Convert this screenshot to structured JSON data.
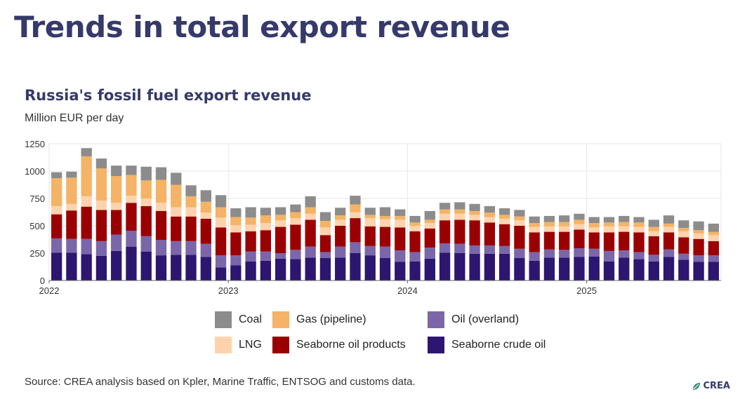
{
  "header": {
    "title": "Trends in total export revenue"
  },
  "chart_data": {
    "type": "bar",
    "stacked": true,
    "title": "Russia's fossil fuel export revenue",
    "subtitle": "Million EUR per day",
    "xlabel": "",
    "ylabel": "Million EUR per day",
    "ylim": [
      0,
      1250
    ],
    "yticks": [
      0,
      250,
      500,
      750,
      1000,
      1250
    ],
    "year_ticks": [
      {
        "label": "2022",
        "month_index": 0
      },
      {
        "label": "2023",
        "month_index": 12
      },
      {
        "label": "2024",
        "month_index": 24
      },
      {
        "label": "2025",
        "month_index": 36
      }
    ],
    "grid": true,
    "categories": [
      "2022-01",
      "2022-02",
      "2022-03",
      "2022-04",
      "2022-05",
      "2022-06",
      "2022-07",
      "2022-08",
      "2022-09",
      "2022-10",
      "2022-11",
      "2022-12",
      "2023-01",
      "2023-02",
      "2023-03",
      "2023-04",
      "2023-05",
      "2023-06",
      "2023-07",
      "2023-08",
      "2023-09",
      "2023-10",
      "2023-11",
      "2023-12",
      "2024-01",
      "2024-02",
      "2024-03",
      "2024-04",
      "2024-05",
      "2024-06",
      "2024-07",
      "2024-08",
      "2024-09",
      "2024-10",
      "2024-11",
      "2024-12",
      "2025-01",
      "2025-02",
      "2025-03",
      "2025-04",
      "2025-05",
      "2025-06",
      "2025-07",
      "2025-08",
      "2025-09"
    ],
    "series": [
      {
        "name": "Seaborne crude oil",
        "color": "#2c1670",
        "values": [
          255,
          255,
          240,
          225,
          270,
          310,
          265,
          230,
          235,
          235,
          215,
          120,
          140,
          175,
          180,
          200,
          195,
          210,
          205,
          210,
          250,
          230,
          205,
          170,
          175,
          200,
          255,
          250,
          245,
          245,
          245,
          205,
          180,
          210,
          210,
          215,
          220,
          175,
          210,
          195,
          175,
          215,
          190,
          170,
          170
        ]
      },
      {
        "name": "Oil (overland)",
        "color": "#7b66a9",
        "values": [
          130,
          125,
          140,
          135,
          150,
          145,
          140,
          140,
          125,
          125,
          120,
          110,
          90,
          90,
          85,
          50,
          85,
          100,
          55,
          100,
          100,
          85,
          105,
          105,
          85,
          100,
          85,
          85,
          75,
          75,
          70,
          85,
          80,
          75,
          70,
          80,
          70,
          95,
          65,
          65,
          60,
          70,
          55,
          60,
          60
        ]
      },
      {
        "name": "Seaborne oil products",
        "color": "#9b0000",
        "values": [
          220,
          260,
          295,
          285,
          225,
          255,
          275,
          265,
          225,
          225,
          230,
          255,
          210,
          185,
          195,
          240,
          230,
          245,
          155,
          190,
          220,
          180,
          180,
          210,
          190,
          175,
          210,
          220,
          230,
          210,
          200,
          210,
          180,
          160,
          165,
          170,
          150,
          170,
          170,
          180,
          170,
          155,
          150,
          150,
          130
        ]
      },
      {
        "name": "LNG",
        "color": "#fdd3ae",
        "values": [
          75,
          60,
          95,
          85,
          65,
          65,
          70,
          75,
          85,
          85,
          55,
          90,
          65,
          60,
          65,
          60,
          60,
          55,
          70,
          55,
          55,
          75,
          70,
          70,
          50,
          50,
          60,
          55,
          50,
          50,
          50,
          50,
          50,
          50,
          50,
          50,
          45,
          55,
          50,
          50,
          45,
          50,
          55,
          50,
          55
        ]
      },
      {
        "name": "Gas (pipeline)",
        "color": "#f4b366",
        "values": [
          255,
          240,
          365,
          295,
          245,
          190,
          165,
          210,
          205,
          100,
          100,
          95,
          75,
          65,
          70,
          50,
          55,
          60,
          60,
          40,
          70,
          30,
          30,
          35,
          30,
          30,
          40,
          40,
          35,
          40,
          35,
          35,
          35,
          40,
          40,
          40,
          40,
          35,
          40,
          40,
          40,
          30,
          30,
          30,
          30
        ]
      },
      {
        "name": "Coal",
        "color": "#8c8c8c",
        "values": [
          55,
          55,
          75,
          90,
          95,
          85,
          125,
          115,
          110,
          100,
          105,
          110,
          80,
          95,
          70,
          70,
          70,
          100,
          80,
          70,
          80,
          65,
          80,
          60,
          60,
          80,
          60,
          65,
          65,
          60,
          60,
          60,
          60,
          55,
          60,
          55,
          55,
          50,
          55,
          50,
          65,
          75,
          70,
          80,
          75
        ]
      }
    ],
    "legend": {
      "placement": "bottom",
      "order": [
        "Coal",
        "Gas (pipeline)",
        "Oil (overland)",
        "LNG",
        "Seaborne oil products",
        "Seaborne crude oil"
      ]
    }
  },
  "footer": {
    "source": "Source: CREA analysis based on Kpler, Marine Traffic, ENTSOG and customs data.",
    "logo_text": "CREA"
  }
}
